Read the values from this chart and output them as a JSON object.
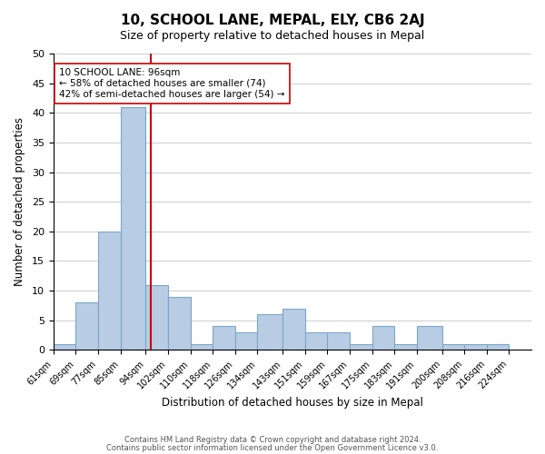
{
  "title": "10, SCHOOL LANE, MEPAL, ELY, CB6 2AJ",
  "subtitle": "Size of property relative to detached houses in Mepal",
  "xlabel": "Distribution of detached houses by size in Mepal",
  "ylabel": "Number of detached properties",
  "footer_line1": "Contains HM Land Registry data © Crown copyright and database right 2024.",
  "footer_line2": "Contains public sector information licensed under the Open Government Licence v3.0.",
  "bin_edges": [
    61,
    69,
    77,
    85,
    94,
    102,
    110,
    118,
    126,
    134,
    143,
    151,
    159,
    167,
    175,
    183,
    191,
    200,
    208,
    216,
    224
  ],
  "bar_heights": [
    1,
    8,
    20,
    41,
    11,
    9,
    1,
    4,
    3,
    6,
    7,
    3,
    3,
    1,
    4,
    1,
    4,
    1,
    1,
    1
  ],
  "bar_color": "#b8cce4",
  "bar_edgecolor": "#7ba7c9",
  "vline_x": 96,
  "vline_color": "#cc0000",
  "annotation_title": "10 SCHOOL LANE: 96sqm",
  "annotation_line1": "← 58% of detached houses are smaller (74)",
  "annotation_line2": "42% of semi-detached houses are larger (54) →",
  "annotation_box_edgecolor": "#cc0000",
  "ylim": [
    0,
    50
  ],
  "yticks": [
    0,
    5,
    10,
    15,
    20,
    25,
    30,
    35,
    40,
    45,
    50
  ],
  "tick_labels": [
    "61sqm",
    "69sqm",
    "77sqm",
    "85sqm",
    "94sqm",
    "102sqm",
    "110sqm",
    "118sqm",
    "126sqm",
    "134sqm",
    "143sqm",
    "151sqm",
    "159sqm",
    "167sqm",
    "175sqm",
    "183sqm",
    "191sqm",
    "200sqm",
    "208sqm",
    "216sqm",
    "224sqm"
  ],
  "background_color": "#ffffff",
  "grid_color": "#cccccc"
}
